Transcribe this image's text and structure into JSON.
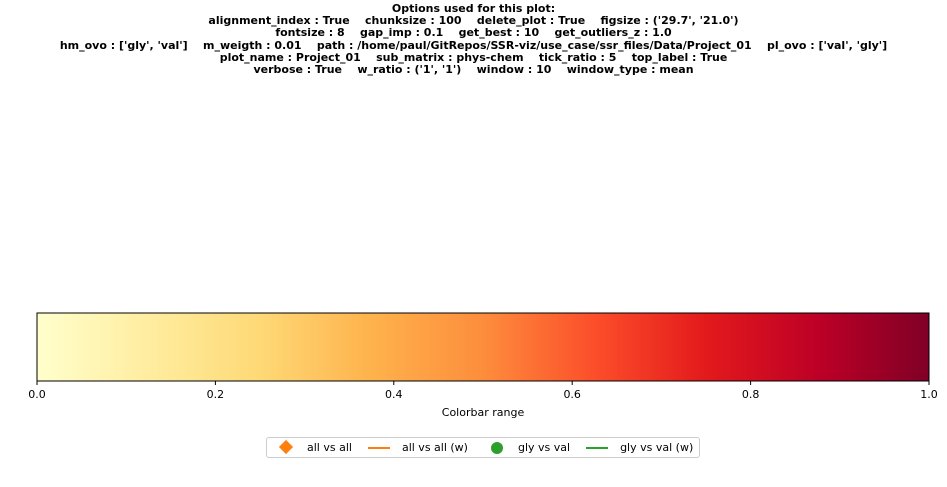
{
  "options": {
    "title": "Options used for this plot:",
    "lines": [
      "alignment_index : True    chunksize : 100    delete_plot : True    figsize : ('29.7', '21.0')",
      "fontsize : 8    gap_imp : 0.1    get_best : 10    get_outliers_z : 1.0",
      "hm_ovo : ['gly', 'val']    m_weigth : 0.01    path : /home/paul/GitRepos/SSR-viz/use_case/ssr_files/Data/Project_01    pl_ovo : ['val', 'gly']",
      "plot_name : Project_01    sub_matrix : phys-chem    tick_ratio : 5    top_label : True",
      "verbose : True    w_ratio : ('1', '1')    window : 10    window_type : mean"
    ]
  },
  "chart_data": {
    "type": "colorbar",
    "colormap": "YlOrRd",
    "colormap_stops": [
      "#ffffcc",
      "#ffeda0",
      "#fed976",
      "#feb24c",
      "#fd8d3c",
      "#fc4e2a",
      "#e31a1c",
      "#bd0026",
      "#800026"
    ],
    "xlim": [
      0.0,
      1.0
    ],
    "ticks": [
      0.0,
      0.2,
      0.4,
      0.6,
      0.8,
      1.0
    ],
    "tick_labels": [
      "0.0",
      "0.2",
      "0.4",
      "0.6",
      "0.8",
      "1.0"
    ],
    "xlabel": "Colorbar range"
  },
  "legend": {
    "placement": "bottom-center",
    "items": [
      {
        "label": "all vs all",
        "marker": "diamond",
        "color": "#ff7f0e"
      },
      {
        "label": "all vs all (w)",
        "marker": "line",
        "color": "#ff7f0e"
      },
      {
        "label": "gly vs val",
        "marker": "circle",
        "color": "#2ca02c"
      },
      {
        "label": "gly vs val (w)",
        "marker": "line",
        "color": "#2ca02c"
      }
    ]
  }
}
